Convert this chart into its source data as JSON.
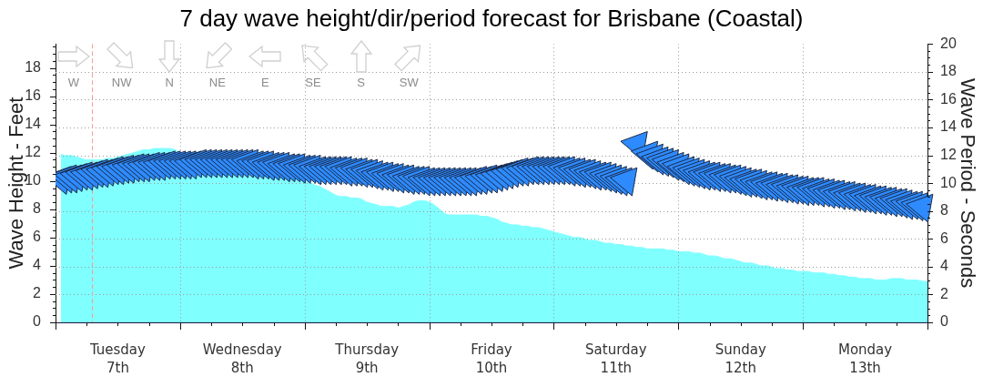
{
  "chart_data": {
    "type": "area",
    "title": "7 day wave height/dir/period forecast for Brisbane (Coastal)",
    "ylabel": "Wave Height - Feet",
    "y2label": "Wave Period - Seconds",
    "categories": [
      null,
      null,
      null,
      null,
      null,
      null,
      null,
      null,
      null,
      null,
      null,
      null,
      "Tuesday\n7th",
      null,
      null,
      null,
      null,
      null,
      null,
      null,
      null,
      null,
      null,
      null,
      null,
      null,
      null,
      null,
      null,
      null,
      null,
      null,
      null,
      null,
      null,
      null,
      "Wednesday\n8th",
      null,
      null,
      null,
      null,
      null,
      null,
      null,
      null,
      null,
      null,
      null,
      null,
      null,
      null,
      null,
      null,
      null,
      null,
      null,
      null,
      null,
      null,
      null,
      "Thursday\n9th",
      null,
      null,
      null,
      null,
      null,
      null,
      null,
      null,
      null,
      null,
      null,
      null,
      null,
      null,
      null,
      null,
      null,
      null,
      null,
      null,
      null,
      null,
      null,
      "Friday\n10th",
      null,
      null,
      null,
      null,
      null,
      null,
      null,
      null,
      null,
      null,
      null,
      null,
      null,
      null,
      null,
      null,
      null,
      null,
      null,
      null,
      null,
      null,
      null,
      "Saturday\n11th",
      null,
      null,
      null,
      null,
      null,
      null,
      null,
      null,
      null,
      null,
      null,
      null,
      null,
      null,
      null,
      null,
      null,
      null,
      null,
      null,
      null,
      null,
      null,
      "Sunday\n12th",
      null,
      null,
      null,
      null,
      null,
      null,
      null,
      null,
      null,
      null,
      null,
      null,
      null,
      null,
      null,
      null,
      null,
      null,
      null,
      null,
      null,
      null,
      null,
      "Monday\n13th",
      null,
      null,
      null,
      null,
      null,
      null,
      null,
      null,
      null,
      null,
      null,
      null
    ],
    "ylim": [
      0,
      19.7
    ],
    "yticks": [
      0,
      {
        "value": 0.5,
        "label": null
      },
      {
        "value": 1,
        "label": null
      },
      {
        "value": 1.5,
        "label": null
      },
      2,
      {
        "value": 2.5,
        "label": null
      },
      {
        "value": 3,
        "label": null
      },
      {
        "value": 3.5,
        "label": null
      },
      4,
      {
        "value": 4.5,
        "label": null
      },
      {
        "value": 5,
        "label": null
      },
      {
        "value": 5.5,
        "label": null
      },
      6,
      {
        "value": 6.5,
        "label": null
      },
      {
        "value": 7,
        "label": null
      },
      {
        "value": 7.5,
        "label": null
      },
      8,
      {
        "value": 8.5,
        "label": null
      },
      {
        "value": 9,
        "label": null
      },
      {
        "value": 9.5,
        "label": null
      },
      10,
      {
        "value": 10.5,
        "label": null
      },
      {
        "value": 11,
        "label": null
      },
      {
        "value": 11.5,
        "label": null
      },
      12,
      {
        "value": 12.5,
        "label": null
      },
      {
        "value": 13,
        "label": null
      },
      {
        "value": 13.5,
        "label": null
      },
      14,
      {
        "value": 14.5,
        "label": null
      },
      {
        "value": 15,
        "label": null
      },
      {
        "value": 15.5,
        "label": null
      },
      16,
      {
        "value": 16.5,
        "label": null
      },
      {
        "value": 17,
        "label": null
      },
      {
        "value": 17.5,
        "label": null
      },
      18,
      {
        "value": 18.5,
        "label": null
      },
      {
        "value": 19,
        "label": null
      },
      {
        "value": 19.5,
        "label": null
      }
    ],
    "y2lim": [
      0,
      20
    ],
    "y2ticks": [
      0,
      {
        "value": 0.5,
        "label": null
      },
      {
        "value": 1,
        "label": null
      },
      {
        "value": 1.5,
        "label": null
      },
      2,
      {
        "value": 2.5,
        "label": null
      },
      {
        "value": 3,
        "label": null
      },
      {
        "value": 3.5,
        "label": null
      },
      4,
      {
        "value": 4.5,
        "label": null
      },
      {
        "value": 5,
        "label": null
      },
      {
        "value": 5.5,
        "label": null
      },
      6,
      {
        "value": 6.5,
        "label": null
      },
      {
        "value": 7,
        "label": null
      },
      {
        "value": 7.5,
        "label": null
      },
      8,
      {
        "value": 8.5,
        "label": null
      },
      {
        "value": 9,
        "label": null
      },
      {
        "value": 9.5,
        "label": null
      },
      10,
      {
        "value": 10.5,
        "label": null
      },
      {
        "value": 11,
        "label": null
      },
      {
        "value": 11.5,
        "label": null
      },
      12,
      {
        "value": 12.5,
        "label": null
      },
      {
        "value": 13,
        "label": null
      },
      {
        "value": 13.5,
        "label": null
      },
      14,
      {
        "value": 14.5,
        "label": null
      },
      {
        "value": 15,
        "label": null
      },
      {
        "value": 15.5,
        "label": null
      },
      16,
      {
        "value": 16.5,
        "label": null
      },
      {
        "value": 17,
        "label": null
      },
      {
        "value": 17.5,
        "label": null
      },
      18,
      {
        "value": 18.5,
        "label": null
      },
      {
        "value": 19,
        "label": null
      },
      {
        "value": 19.5,
        "label": null
      },
      20
    ],
    "grid": true,
    "annotations": [
      "W",
      "NW",
      "N",
      "NE",
      "E",
      "SE",
      "S",
      "SW"
    ],
    "series": [
      {
        "color": "#80ffff",
        "values": [
          null,
          11.9,
          11.8,
          11.8,
          11.7,
          11.6,
          11.5,
          11.5,
          11.5,
          11.5,
          11.6,
          11.6,
          11.7,
          11.8,
          11.9,
          12.0,
          12.1,
          12.2,
          12.2,
          12.3,
          12.3,
          12.3,
          12.3,
          12.2,
          12.0,
          11.8,
          11.7,
          11.6,
          11.5,
          11.4,
          11.4,
          11.3,
          11.2,
          11.2,
          11.1,
          11.0,
          11.0,
          10.9,
          10.8,
          10.8,
          10.7,
          10.6,
          10.6,
          10.5,
          10.4,
          10.3,
          10.2,
          10.1,
          10.0,
          9.9,
          9.7,
          9.6,
          9.4,
          9.2,
          9.0,
          8.9,
          8.9,
          8.8,
          8.8,
          8.7,
          8.5,
          8.4,
          8.3,
          8.2,
          8.2,
          8.2,
          8.1,
          8.2,
          8.3,
          8.5,
          8.6,
          8.6,
          8.5,
          8.3,
          8.0,
          7.7,
          7.6,
          7.6,
          7.6,
          7.6,
          7.6,
          7.6,
          7.5,
          7.5,
          7.4,
          7.3,
          7.1,
          7.0,
          6.9,
          6.9,
          6.8,
          6.8,
          6.7,
          6.7,
          6.6,
          6.5,
          6.4,
          6.3,
          6.2,
          6.1,
          6.0,
          6.0,
          5.9,
          5.8,
          5.8,
          5.7,
          5.6,
          5.6,
          5.5,
          5.5,
          5.4,
          5.4,
          5.3,
          5.3,
          5.2,
          5.2,
          5.2,
          5.2,
          5.1,
          5.1,
          5.0,
          5.0,
          5.0,
          4.9,
          4.9,
          4.8,
          4.7,
          4.7,
          4.6,
          4.5,
          4.5,
          4.4,
          4.3,
          4.2,
          4.2,
          4.1,
          4.0,
          4.0,
          3.9,
          3.8,
          3.8,
          3.7,
          3.7,
          3.6,
          3.6,
          3.6,
          3.5,
          3.5,
          3.5,
          3.4,
          3.4,
          3.3,
          3.3,
          3.2,
          3.2,
          3.1,
          3.1,
          3.1,
          3.0,
          3.0,
          3.0,
          3.1,
          3.1,
          3.1,
          3.0,
          3.0,
          3.0,
          2.9,
          2.9
        ]
      },
      {
        "type": "scatter",
        "axis": "y2",
        "color": "#2e8bff",
        "marker": "triangle",
        "values": [
          null,
          10.3,
          10.4,
          10.4,
          10.5,
          10.6,
          10.6,
          10.7,
          10.8,
          10.8,
          10.9,
          11.0,
          11.0,
          11.1,
          11.1,
          11.2,
          11.2,
          11.2,
          11.3,
          11.3,
          11.3,
          11.4,
          11.4,
          11.4,
          11.4,
          11.4,
          11.4,
          11.5,
          11.5,
          11.5,
          11.5,
          11.5,
          11.5,
          11.5,
          11.5,
          11.5,
          11.5,
          11.5,
          11.4,
          11.4,
          11.4,
          11.3,
          11.3,
          11.3,
          11.2,
          11.2,
          11.2,
          11.1,
          11.1,
          11.1,
          11.0,
          11.0,
          11.0,
          11.0,
          11.0,
          11.0,
          10.9,
          10.9,
          10.9,
          10.8,
          10.8,
          10.7,
          10.6,
          10.6,
          10.5,
          10.5,
          10.4,
          10.4,
          10.3,
          10.3,
          10.3,
          10.2,
          10.2,
          10.2,
          10.2,
          10.2,
          10.2,
          10.2,
          10.2,
          10.2,
          10.2,
          10.3,
          10.3,
          10.4,
          10.4,
          10.5,
          10.6,
          10.7,
          10.8,
          10.9,
          10.9,
          11.0,
          11.0,
          11.0,
          11.0,
          11.0,
          11.0,
          11.0,
          11.0,
          10.9,
          10.9,
          10.8,
          10.8,
          10.7,
          10.6,
          10.6,
          10.5,
          10.4,
          10.3,
          10.2,
          10.2,
          null,
          12.8,
          null,
          12.1,
          11.9,
          11.7,
          11.6,
          11.5,
          11.3,
          11.2,
          11.0,
          10.9,
          10.8,
          10.7,
          10.6,
          10.6,
          10.5,
          10.5,
          10.4,
          10.4,
          10.3,
          10.2,
          10.1,
          10.1,
          10.0,
          9.9,
          9.9,
          9.8,
          9.8,
          9.7,
          9.7,
          9.6,
          9.6,
          9.5,
          9.5,
          9.5,
          9.4,
          9.4,
          9.3,
          9.3,
          9.2,
          9.2,
          9.1,
          9.1,
          9.0,
          9.0,
          8.9,
          8.9,
          8.8,
          8.8,
          8.7,
          8.7,
          8.6,
          8.5,
          8.5,
          8.4,
          8.3,
          null
        ]
      }
    ]
  }
}
